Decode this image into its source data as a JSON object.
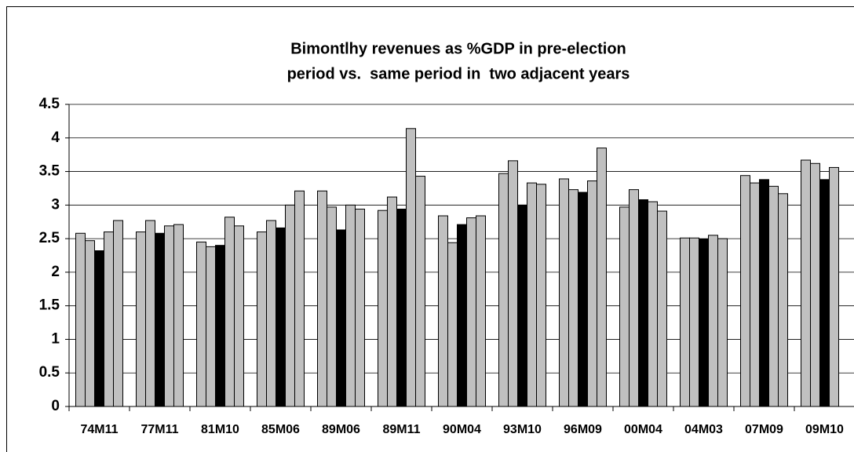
{
  "chart_data": {
    "type": "bar",
    "title": [
      "Bimontlhy revenues as %GDP in pre-election",
      "period vs.  same period in  two adjacent years"
    ],
    "categories": [
      "74M11",
      "77M11",
      "81M10",
      "85M06",
      "89M06",
      "89M11",
      "90M04",
      "93M10",
      "96M09",
      "00M04",
      "04M03",
      "07M09",
      "09M10"
    ],
    "series": [
      {
        "color": "#c0c0c0",
        "values": [
          2.58,
          2.6,
          2.45,
          2.6,
          3.21,
          2.92,
          2.84,
          3.47,
          3.39,
          2.97,
          2.51,
          3.44,
          3.67
        ]
      },
      {
        "color": "#c0c0c0",
        "values": [
          2.47,
          2.77,
          2.38,
          2.77,
          2.97,
          3.12,
          2.44,
          3.66,
          3.23,
          3.23,
          2.51,
          3.33,
          3.62
        ]
      },
      {
        "color": "#000000",
        "values": [
          2.32,
          2.58,
          2.4,
          2.66,
          2.63,
          2.94,
          2.71,
          3.0,
          3.19,
          3.08,
          2.49,
          3.38,
          3.38
        ]
      },
      {
        "color": "#c0c0c0",
        "values": [
          2.6,
          2.69,
          2.82,
          3.0,
          3.0,
          4.14,
          2.81,
          3.33,
          3.36,
          3.05,
          2.55,
          3.28,
          3.56
        ]
      },
      {
        "color": "#c0c0c0",
        "values": [
          2.77,
          2.71,
          2.69,
          3.21,
          2.94,
          3.43,
          2.84,
          3.31,
          3.85,
          2.91,
          2.5,
          3.17,
          null
        ]
      }
    ],
    "ylim": [
      0,
      4.5
    ],
    "yticks": [
      0,
      0.5,
      1,
      1.5,
      2,
      2.5,
      3,
      3.5,
      4,
      4.5
    ],
    "grid": true
  }
}
